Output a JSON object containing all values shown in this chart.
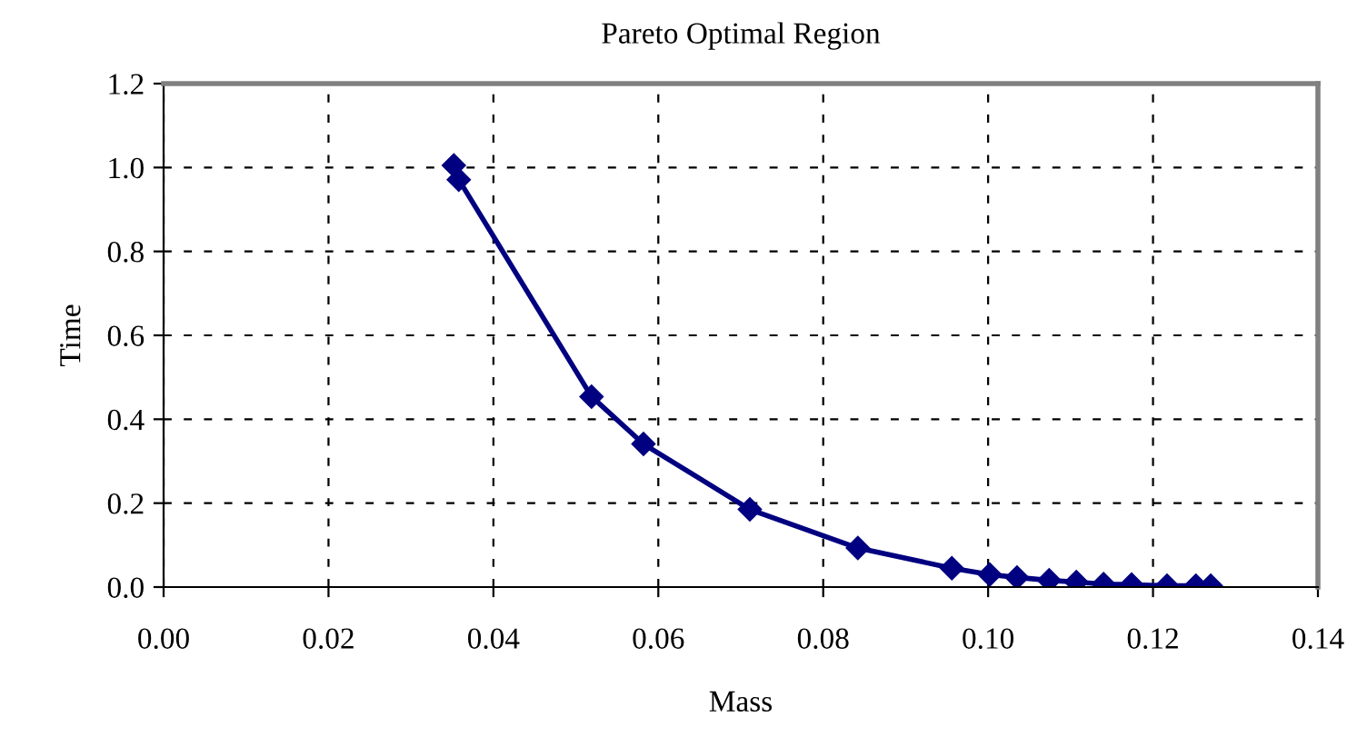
{
  "chart_data": {
    "type": "line",
    "title": "Pareto Optimal Region",
    "xlabel": "Mass",
    "ylabel": "Time",
    "x": [
      0.0352,
      0.0358,
      0.0519,
      0.0582,
      0.0711,
      0.0842,
      0.0956,
      0.1002,
      0.1035,
      0.1074,
      0.1107,
      0.114,
      0.1174,
      0.1217,
      0.1252,
      0.127
    ],
    "series": [
      {
        "color": "#000080",
        "values": [
          1.005,
          0.971,
          0.454,
          0.341,
          0.185,
          0.093,
          0.045,
          0.03,
          0.023,
          0.016,
          0.012,
          0.007,
          0.006,
          0.003,
          0.003,
          0.003
        ]
      }
    ],
    "xlim": [
      0,
      0.14
    ],
    "xticks": [
      {
        "value": 0,
        "label": "0.00"
      },
      {
        "value": 0.02,
        "label": "0.02"
      },
      {
        "value": 0.04,
        "label": "0.04"
      },
      {
        "value": 0.06,
        "label": "0.06"
      },
      {
        "value": 0.08,
        "label": "0.08"
      },
      {
        "value": 0.1,
        "label": "0.10"
      },
      {
        "value": 0.12,
        "label": "0.12"
      },
      {
        "value": 0.14,
        "label": "0.14"
      }
    ],
    "ylim": [
      0,
      1.2
    ],
    "yticks": [
      {
        "value": 0,
        "label": "0.0"
      },
      {
        "value": 0.2,
        "label": "0.2"
      },
      {
        "value": 0.4,
        "label": "0.4"
      },
      {
        "value": 0.6,
        "label": "0.6"
      },
      {
        "value": 0.8,
        "label": "0.8"
      },
      {
        "value": 1.0,
        "label": "1.0"
      },
      {
        "value": 1.2,
        "label": "1.2"
      }
    ],
    "grid": true,
    "marker": "diamond",
    "line_style": "solid",
    "legend": false
  }
}
